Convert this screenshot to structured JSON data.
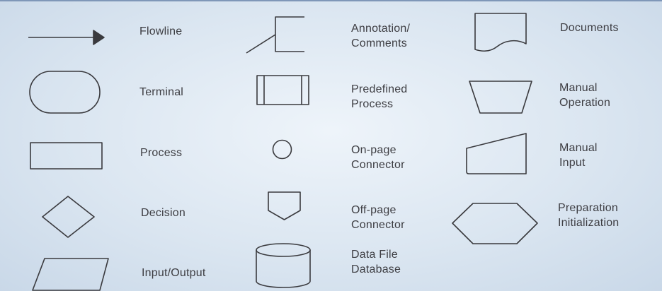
{
  "symbols": {
    "flowline": {
      "label": "Flowline",
      "icon": "arrow-icon"
    },
    "terminal": {
      "label": "Terminal",
      "icon": "stadium-icon"
    },
    "process": {
      "label": "Process",
      "icon": "rectangle-icon"
    },
    "decision": {
      "label": "Decision",
      "icon": "diamond-icon"
    },
    "input_output": {
      "label": "Input/Output",
      "icon": "parallelogram-icon"
    },
    "annotation": {
      "line1": "Annotation/",
      "line2": "Comments",
      "icon": "bracket-icon"
    },
    "predefined": {
      "line1": "Predefined",
      "line2": "Process",
      "icon": "double-sided-rectangle-icon"
    },
    "onpage": {
      "line1": "On-page",
      "line2": "Connector",
      "icon": "circle-icon"
    },
    "offpage": {
      "line1": "Off-page",
      "line2": "Connector",
      "icon": "pentagon-icon"
    },
    "datafile": {
      "line1": "Data File",
      "line2": "Database",
      "icon": "cylinder-icon"
    },
    "documents": {
      "label": "Documents",
      "icon": "document-icon"
    },
    "manual_op": {
      "line1": "Manual",
      "line2": "Operation",
      "icon": "trapezoid-icon"
    },
    "manual_input": {
      "line1": "Manual",
      "line2": "Input",
      "icon": "sloped-rectangle-icon"
    },
    "preparation": {
      "line1": "Preparation",
      "line2": "Initialization",
      "icon": "hexagon-icon"
    }
  },
  "colors": {
    "stroke": "#3a3a3e",
    "text": "#3d3d42",
    "background": "#dbe6f1",
    "top_rule": "#7f97b8"
  }
}
